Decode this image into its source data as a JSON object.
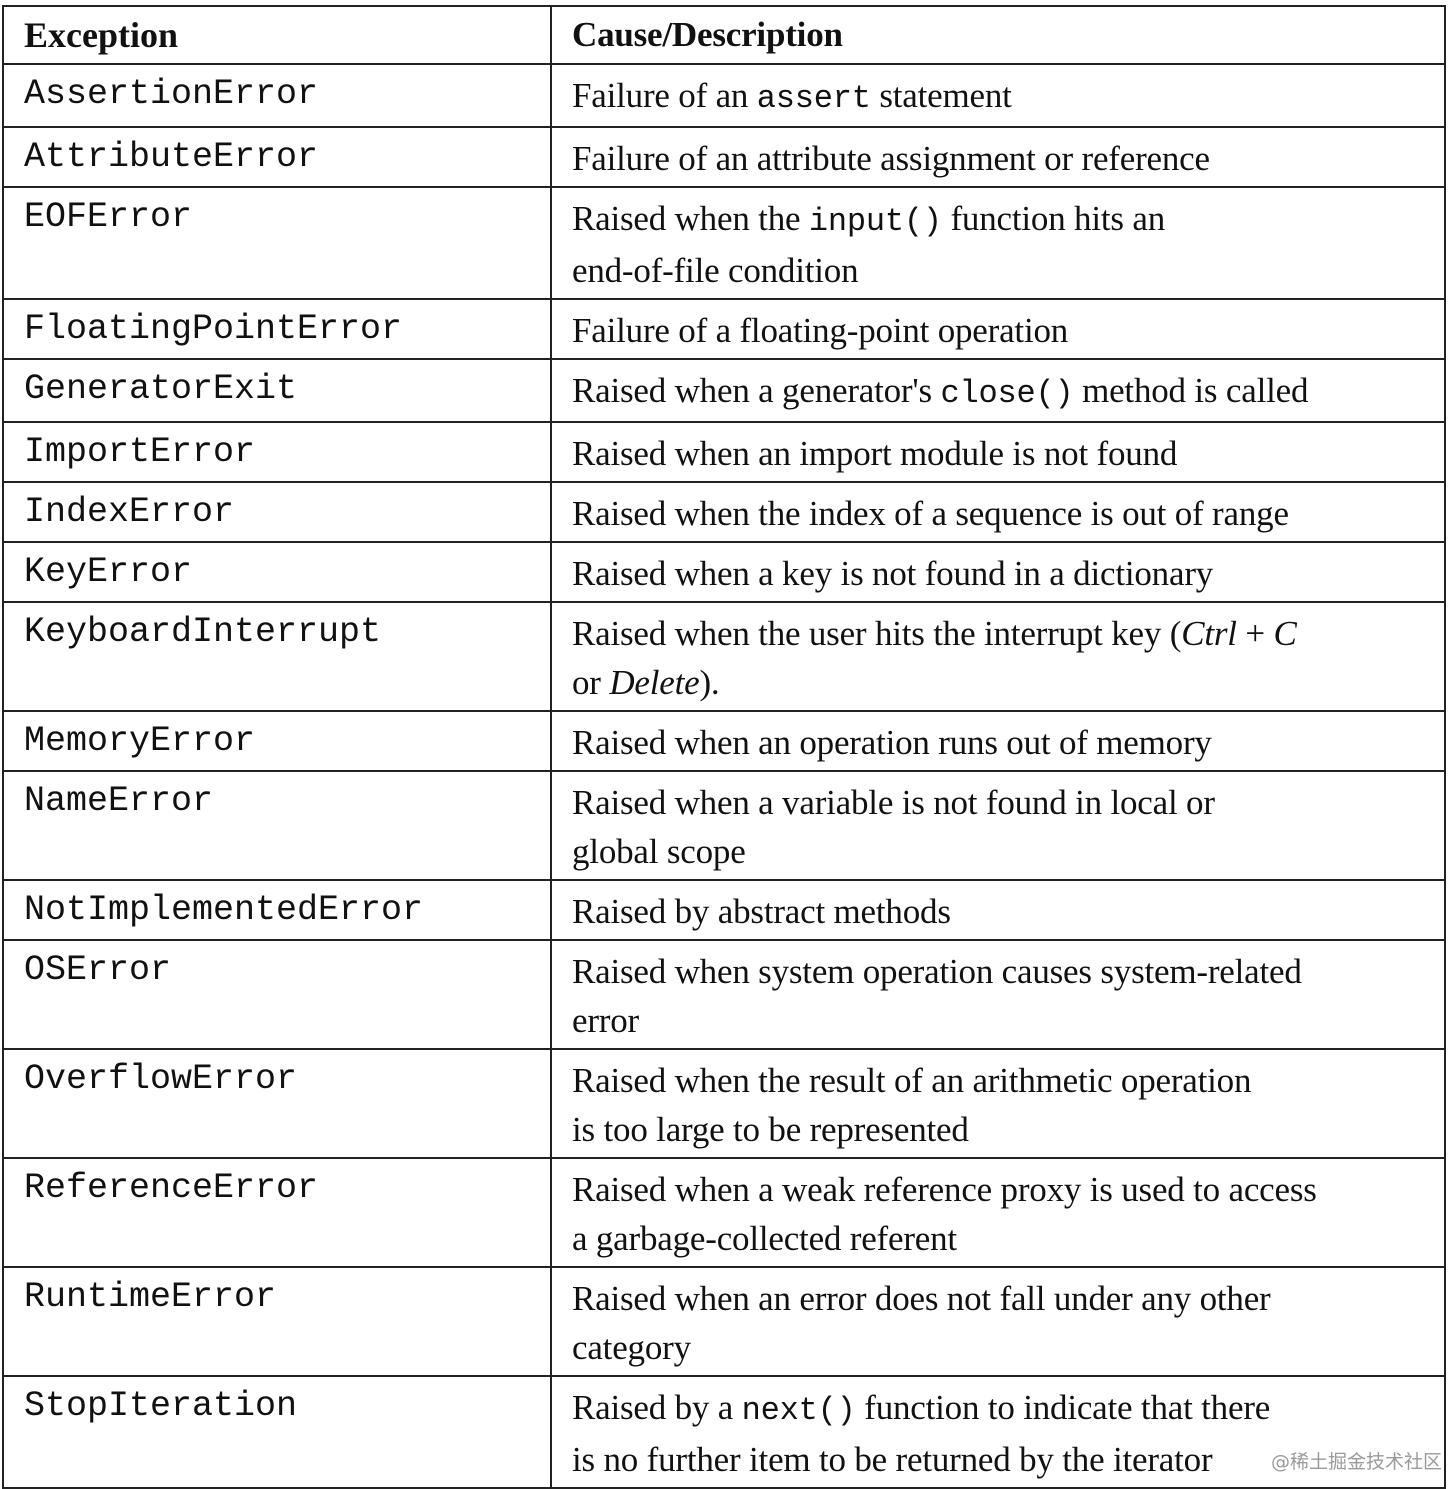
{
  "table": {
    "headers": [
      "Exception",
      "Cause/Description"
    ],
    "rows": [
      {
        "exception": "AssertionError",
        "lines": [
          [
            {
              "t": "Failure of an "
            },
            {
              "t": "assert",
              "s": "code"
            },
            {
              "t": " statement"
            }
          ]
        ]
      },
      {
        "exception": "AttributeError",
        "lines": [
          [
            {
              "t": "Failure of an attribute assignment or reference"
            }
          ]
        ]
      },
      {
        "exception": "EOFError",
        "lines": [
          [
            {
              "t": "Raised when the "
            },
            {
              "t": "input()",
              "s": "code"
            },
            {
              "t": " function hits an"
            }
          ],
          [
            {
              "t": "end-of-file condition"
            }
          ]
        ]
      },
      {
        "exception": "FloatingPointError",
        "lines": [
          [
            {
              "t": "Failure of a floating-point operation"
            }
          ]
        ]
      },
      {
        "exception": "GeneratorExit",
        "lines": [
          [
            {
              "t": "Raised when a generator's "
            },
            {
              "t": "close()",
              "s": "code"
            },
            {
              "t": " method is called"
            }
          ]
        ]
      },
      {
        "exception": "ImportError",
        "lines": [
          [
            {
              "t": "Raised when an import module is not found"
            }
          ]
        ]
      },
      {
        "exception": "IndexError",
        "lines": [
          [
            {
              "t": "Raised when the index of a sequence is out of range"
            }
          ]
        ]
      },
      {
        "exception": "KeyError",
        "lines": [
          [
            {
              "t": "Raised when a key is not found in a dictionary"
            }
          ]
        ]
      },
      {
        "exception": "KeyboardInterrupt",
        "lines": [
          [
            {
              "t": "Raised when the user hits the interrupt key ("
            },
            {
              "t": "Ctrl",
              "s": "italic"
            },
            {
              "t": " + "
            },
            {
              "t": "C",
              "s": "italic"
            }
          ],
          [
            {
              "t": "or "
            },
            {
              "t": "Delete",
              "s": "italic"
            },
            {
              "t": ")."
            }
          ]
        ]
      },
      {
        "exception": "MemoryError",
        "lines": [
          [
            {
              "t": "Raised when an operation runs out of memory"
            }
          ]
        ]
      },
      {
        "exception": "NameError",
        "lines": [
          [
            {
              "t": "Raised when a variable is not found in local or"
            }
          ],
          [
            {
              "t": "global scope"
            }
          ]
        ]
      },
      {
        "exception": "NotImplementedError",
        "lines": [
          [
            {
              "t": "Raised by abstract methods"
            }
          ]
        ]
      },
      {
        "exception": "OSError",
        "lines": [
          [
            {
              "t": "Raised when system operation causes system-related"
            }
          ],
          [
            {
              "t": "error"
            }
          ]
        ]
      },
      {
        "exception": "OverflowError",
        "lines": [
          [
            {
              "t": "Raised when the result of an arithmetic operation"
            }
          ],
          [
            {
              "t": "is too large to be represented"
            }
          ]
        ]
      },
      {
        "exception": "ReferenceError",
        "lines": [
          [
            {
              "t": "Raised when a weak reference proxy is used to access"
            }
          ],
          [
            {
              "t": "a garbage-collected referent"
            }
          ]
        ]
      },
      {
        "exception": "RuntimeError",
        "lines": [
          [
            {
              "t": "Raised when an error does not fall under any other"
            }
          ],
          [
            {
              "t": "category"
            }
          ]
        ]
      },
      {
        "exception": "StopIteration",
        "lines": [
          [
            {
              "t": "Raised by a "
            },
            {
              "t": "next()",
              "s": "code"
            },
            {
              "t": " function to indicate that there"
            }
          ],
          [
            {
              "t": "is no further item to be returned by the iterator"
            }
          ]
        ]
      }
    ]
  },
  "watermark": "@稀土掘金技术社区"
}
